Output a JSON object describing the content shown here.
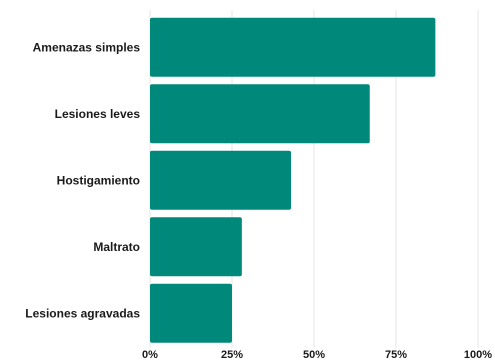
{
  "chart_data": {
    "type": "bar",
    "orientation": "horizontal",
    "categories": [
      "Amenazas simples",
      "Lesiones leves",
      "Hostigamiento",
      "Maltrato",
      "Lesiones agravadas"
    ],
    "values": [
      87,
      67,
      43,
      28,
      25
    ],
    "unit": "%",
    "xlim": [
      0,
      100
    ],
    "x_ticks": [
      0,
      25,
      50,
      75,
      100
    ],
    "x_tick_labels": [
      "0%",
      "25%",
      "50%",
      "75%",
      "100%"
    ],
    "grid": true,
    "legend": "none",
    "bar_color": "#00897b",
    "title": "",
    "xlabel": "",
    "ylabel": ""
  }
}
